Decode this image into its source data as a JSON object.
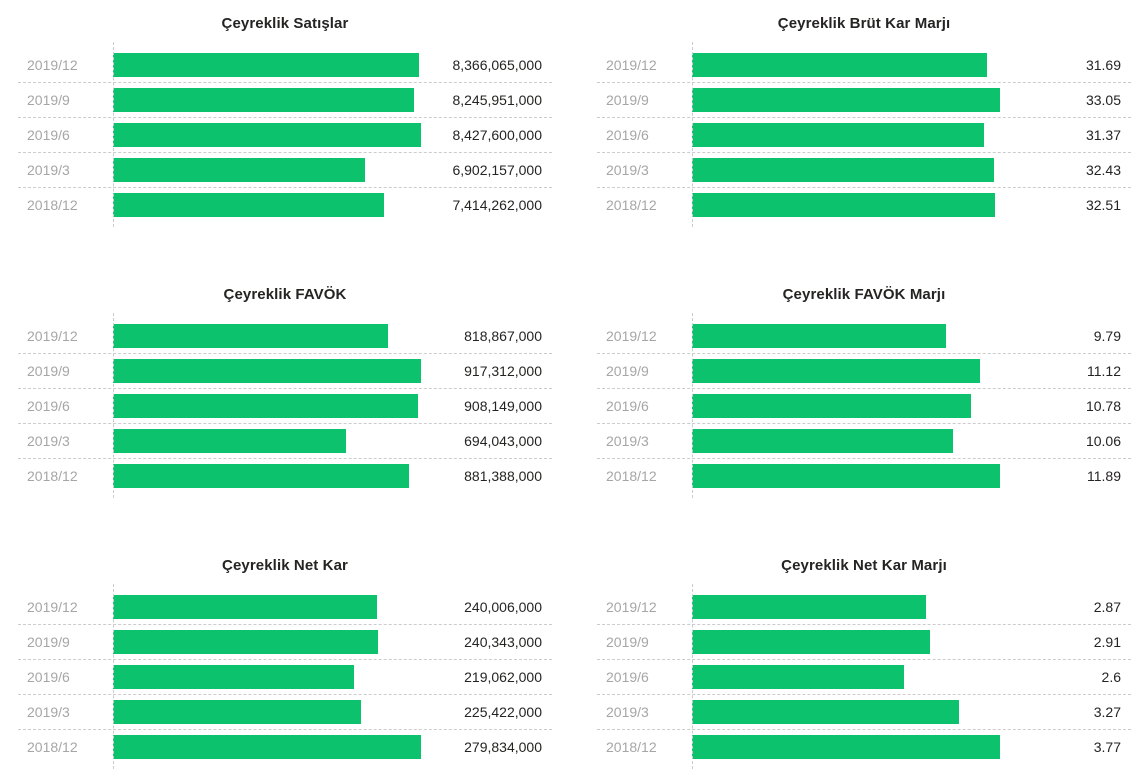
{
  "colors": {
    "bar": "#0cc26c",
    "label": "#a6a6a6",
    "value": "#252423",
    "title": "#252423",
    "grid": "#cccccc",
    "background": "#ffffff"
  },
  "chart_data": [
    {
      "type": "bar",
      "orientation": "horizontal",
      "title": "Çeyreklik Satışlar",
      "categories": [
        "2019/12",
        "2019/9",
        "2019/6",
        "2019/3",
        "2018/12"
      ],
      "values": [
        8366065000,
        8245951000,
        8427600000,
        6902157000,
        7414262000
      ],
      "value_labels": [
        "8,366,065,000",
        "8,245,951,000",
        "8,427,600,000",
        "6,902,157,000",
        "7,414,262,000"
      ],
      "xlim": [
        0,
        8427600000
      ],
      "grid": "dashed-row-separators",
      "legend": "none"
    },
    {
      "type": "bar",
      "orientation": "horizontal",
      "title": "Çeyreklik Brüt Kar Marjı",
      "categories": [
        "2019/12",
        "2019/9",
        "2019/6",
        "2019/3",
        "2018/12"
      ],
      "values": [
        31.69,
        33.05,
        31.37,
        32.43,
        32.51
      ],
      "value_labels": [
        "31.69",
        "33.05",
        "31.37",
        "32.43",
        "32.51"
      ],
      "xlim": [
        0,
        33.05
      ],
      "grid": "dashed-row-separators",
      "legend": "none"
    },
    {
      "type": "bar",
      "orientation": "horizontal",
      "title": "Çeyreklik FAVÖK",
      "categories": [
        "2019/12",
        "2019/9",
        "2019/6",
        "2019/3",
        "2018/12"
      ],
      "values": [
        818867000,
        917312000,
        908149000,
        694043000,
        881388000
      ],
      "value_labels": [
        "818,867,000",
        "917,312,000",
        "908,149,000",
        "694,043,000",
        "881,388,000"
      ],
      "xlim": [
        0,
        917312000
      ],
      "grid": "dashed-row-separators",
      "legend": "none"
    },
    {
      "type": "bar",
      "orientation": "horizontal",
      "title": "Çeyreklik FAVÖK Marjı",
      "categories": [
        "2019/12",
        "2019/9",
        "2019/6",
        "2019/3",
        "2018/12"
      ],
      "values": [
        9.79,
        11.12,
        10.78,
        10.06,
        11.89
      ],
      "value_labels": [
        "9.79",
        "11.12",
        "10.78",
        "10.06",
        "11.89"
      ],
      "xlim": [
        0,
        11.89
      ],
      "grid": "dashed-row-separators",
      "legend": "none"
    },
    {
      "type": "bar",
      "orientation": "horizontal",
      "title": "Çeyreklik Net Kar",
      "categories": [
        "2019/12",
        "2019/9",
        "2019/6",
        "2019/3",
        "2018/12"
      ],
      "values": [
        240006000,
        240343000,
        219062000,
        225422000,
        279834000
      ],
      "value_labels": [
        "240,006,000",
        "240,343,000",
        "219,062,000",
        "225,422,000",
        "279,834,000"
      ],
      "xlim": [
        0,
        279834000
      ],
      "grid": "dashed-row-separators",
      "legend": "none"
    },
    {
      "type": "bar",
      "orientation": "horizontal",
      "title": "Çeyreklik Net Kar Marjı",
      "categories": [
        "2019/12",
        "2019/9",
        "2019/6",
        "2019/3",
        "2018/12"
      ],
      "values": [
        2.87,
        2.91,
        2.6,
        3.27,
        3.77
      ],
      "value_labels": [
        "2.87",
        "2.91",
        "2.6",
        "3.27",
        "3.77"
      ],
      "xlim": [
        0,
        3.77
      ],
      "grid": "dashed-row-separators",
      "legend": "none"
    }
  ]
}
